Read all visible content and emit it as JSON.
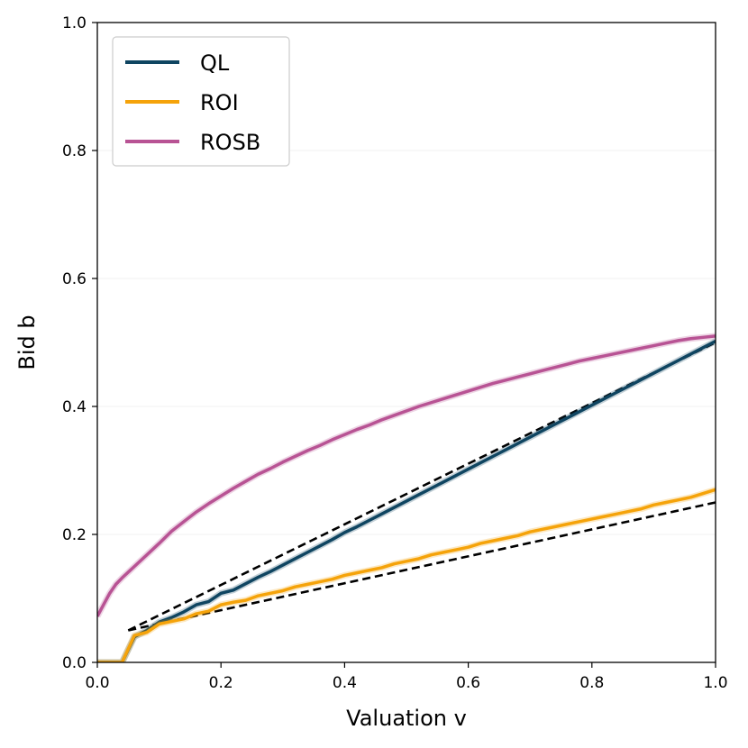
{
  "chart_data": {
    "type": "line",
    "title": "",
    "xlabel": "Valuation v",
    "ylabel": "Bid b",
    "xlim": [
      0.0,
      1.0
    ],
    "ylim": [
      0.0,
      1.0
    ],
    "xticks": [
      "0.0",
      "0.2",
      "0.4",
      "0.6",
      "0.8",
      "1.0"
    ],
    "yticks": [
      "0.0",
      "0.2",
      "0.4",
      "0.6",
      "0.8",
      "1.0"
    ],
    "grid": "horizontal-light",
    "legend_position": "top-left",
    "series": [
      {
        "name": "QL",
        "color": "#0f4561",
        "x": [
          0.0,
          0.04,
          0.06,
          0.08,
          0.1,
          0.12,
          0.14,
          0.16,
          0.18,
          0.2,
          0.22,
          0.24,
          0.26,
          0.28,
          0.3,
          0.32,
          0.34,
          0.36,
          0.38,
          0.4,
          0.42,
          0.44,
          0.46,
          0.48,
          0.5,
          0.52,
          0.54,
          0.56,
          0.58,
          0.6,
          0.62,
          0.64,
          0.66,
          0.68,
          0.7,
          0.72,
          0.74,
          0.76,
          0.78,
          0.8,
          0.82,
          0.84,
          0.86,
          0.88,
          0.9,
          0.92,
          0.94,
          0.96,
          0.98,
          1.0
        ],
        "values": [
          0.0,
          0.0,
          0.04,
          0.05,
          0.063,
          0.07,
          0.079,
          0.09,
          0.095,
          0.108,
          0.113,
          0.123,
          0.133,
          0.142,
          0.152,
          0.162,
          0.172,
          0.182,
          0.192,
          0.203,
          0.212,
          0.222,
          0.232,
          0.242,
          0.252,
          0.262,
          0.272,
          0.282,
          0.292,
          0.302,
          0.312,
          0.322,
          0.332,
          0.342,
          0.352,
          0.362,
          0.372,
          0.382,
          0.392,
          0.402,
          0.412,
          0.422,
          0.432,
          0.442,
          0.452,
          0.462,
          0.472,
          0.482,
          0.492,
          0.502
        ]
      },
      {
        "name": "ROI",
        "color": "#f5a30a",
        "x": [
          0.0,
          0.04,
          0.06,
          0.08,
          0.1,
          0.12,
          0.14,
          0.16,
          0.18,
          0.2,
          0.22,
          0.24,
          0.26,
          0.28,
          0.3,
          0.32,
          0.34,
          0.36,
          0.38,
          0.4,
          0.42,
          0.44,
          0.46,
          0.48,
          0.5,
          0.52,
          0.54,
          0.56,
          0.58,
          0.6,
          0.62,
          0.64,
          0.66,
          0.68,
          0.7,
          0.72,
          0.74,
          0.76,
          0.78,
          0.8,
          0.82,
          0.84,
          0.86,
          0.88,
          0.9,
          0.92,
          0.94,
          0.96,
          0.98,
          1.0
        ],
        "values": [
          0.0,
          0.0,
          0.042,
          0.047,
          0.06,
          0.064,
          0.068,
          0.076,
          0.08,
          0.09,
          0.094,
          0.097,
          0.104,
          0.108,
          0.112,
          0.118,
          0.122,
          0.126,
          0.13,
          0.136,
          0.14,
          0.144,
          0.148,
          0.154,
          0.158,
          0.162,
          0.168,
          0.172,
          0.176,
          0.18,
          0.186,
          0.19,
          0.194,
          0.198,
          0.204,
          0.208,
          0.212,
          0.216,
          0.22,
          0.224,
          0.228,
          0.232,
          0.236,
          0.24,
          0.246,
          0.25,
          0.254,
          0.258,
          0.264,
          0.27
        ]
      },
      {
        "name": "ROSB",
        "color": "#b85394",
        "x": [
          0.0,
          0.01,
          0.02,
          0.03,
          0.04,
          0.06,
          0.08,
          0.1,
          0.12,
          0.14,
          0.16,
          0.18,
          0.2,
          0.22,
          0.24,
          0.26,
          0.28,
          0.3,
          0.32,
          0.34,
          0.36,
          0.38,
          0.4,
          0.42,
          0.44,
          0.46,
          0.48,
          0.5,
          0.52,
          0.54,
          0.56,
          0.58,
          0.6,
          0.62,
          0.64,
          0.66,
          0.68,
          0.7,
          0.72,
          0.74,
          0.76,
          0.78,
          0.8,
          0.82,
          0.84,
          0.86,
          0.88,
          0.9,
          0.92,
          0.94,
          0.96,
          0.98,
          1.0
        ],
        "values": [
          0.072,
          0.09,
          0.108,
          0.122,
          0.132,
          0.15,
          0.168,
          0.186,
          0.205,
          0.22,
          0.235,
          0.248,
          0.26,
          0.272,
          0.283,
          0.294,
          0.303,
          0.313,
          0.322,
          0.331,
          0.339,
          0.348,
          0.356,
          0.364,
          0.371,
          0.379,
          0.386,
          0.393,
          0.4,
          0.406,
          0.412,
          0.418,
          0.424,
          0.43,
          0.436,
          0.441,
          0.446,
          0.451,
          0.456,
          0.461,
          0.466,
          0.471,
          0.475,
          0.479,
          0.483,
          0.487,
          0.491,
          0.495,
          0.499,
          0.503,
          0.506,
          0.508,
          0.51
        ]
      }
    ],
    "reference_lines": [
      {
        "name": "QL reference",
        "color": "#000000",
        "style": "dashed",
        "x": [
          0.05,
          1.0
        ],
        "values": [
          0.05,
          0.5
        ]
      },
      {
        "name": "ROI reference",
        "color": "#000000",
        "style": "dashed",
        "x": [
          0.05,
          1.0
        ],
        "values": [
          0.05,
          0.25
        ]
      }
    ]
  }
}
